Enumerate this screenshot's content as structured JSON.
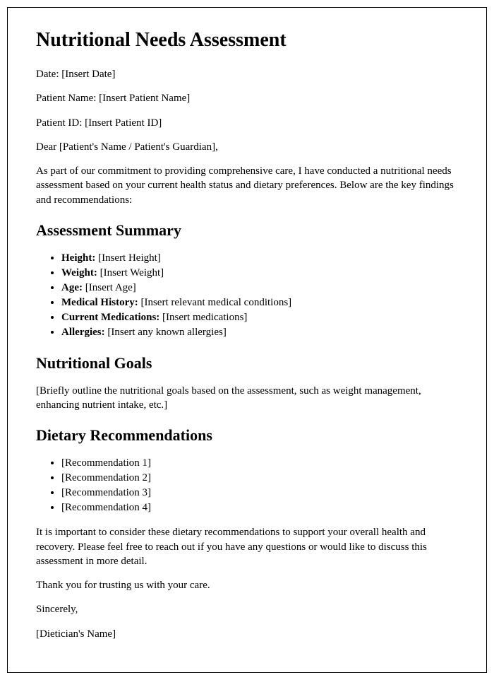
{
  "title": "Nutritional Needs Assessment",
  "fields": {
    "date_label": "Date: ",
    "date_value": "[Insert Date]",
    "patient_name_label": "Patient Name: ",
    "patient_name_value": "[Insert Patient Name]",
    "patient_id_label": "Patient ID: ",
    "patient_id_value": "[Insert Patient ID]"
  },
  "salutation": "Dear [Patient's Name / Patient's Guardian],",
  "intro": "As part of our commitment to providing comprehensive care, I have conducted a nutritional needs assessment based on your current health status and dietary preferences. Below are the key findings and recommendations:",
  "summary_heading": "Assessment Summary",
  "summary_items": [
    {
      "label": "Height:",
      "value": " [Insert Height]"
    },
    {
      "label": "Weight:",
      "value": " [Insert Weight]"
    },
    {
      "label": "Age:",
      "value": " [Insert Age]"
    },
    {
      "label": "Medical History:",
      "value": " [Insert relevant medical conditions]"
    },
    {
      "label": "Current Medications:",
      "value": " [Insert medications]"
    },
    {
      "label": "Allergies:",
      "value": " [Insert any known allergies]"
    }
  ],
  "goals_heading": "Nutritional Goals",
  "goals_text": "[Briefly outline the nutritional goals based on the assessment, such as weight management, enhancing nutrient intake, etc.]",
  "recs_heading": "Dietary Recommendations",
  "rec_items": [
    "[Recommendation 1]",
    "[Recommendation 2]",
    "[Recommendation 3]",
    "[Recommendation 4]"
  ],
  "closing_para": "It is important to consider these dietary recommendations to support your overall health and recovery. Please feel free to reach out if you have any questions or would like to discuss this assessment in more detail.",
  "thank_you": "Thank you for trusting us with your care.",
  "signoff": "Sincerely,",
  "signer": "[Dietician's Name]",
  "style": {
    "font_family": "Times New Roman",
    "h1_fontsize": 28,
    "h2_fontsize": 22,
    "body_fontsize": 15,
    "text_color": "#000000",
    "background_color": "#ffffff",
    "border_color": "#000000"
  }
}
